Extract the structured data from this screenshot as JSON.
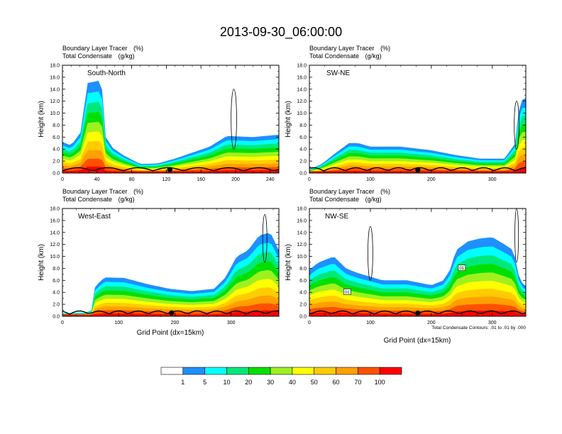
{
  "title": "2013-09-30_06:00:00",
  "panel_common": {
    "tracer_label": "Boundary Layer Tracer",
    "tracer_unit": "(%)",
    "condensate_label": "Total Condensate",
    "condensate_unit": "(g/kg)",
    "ylabel": "Height (km)",
    "xlabel": "Grid Point (dx=15km)"
  },
  "contour_note": "Total Condensate Contours: .01 to .01 by .000",
  "colorbar": {
    "levels": [
      "1",
      "5",
      "10",
      "20",
      "30",
      "40",
      "50",
      "60",
      "70",
      "100"
    ],
    "colors": [
      "#ffffff",
      "#1e90ff",
      "#00ffff",
      "#00e87a",
      "#00e000",
      "#a0f020",
      "#ffff00",
      "#ffcc00",
      "#ffa000",
      "#ff5000",
      "#ff0000"
    ]
  },
  "chart_data": [
    {
      "type": "contour",
      "panel": "South-North",
      "x_ticks": [
        "0",
        "40",
        "80",
        "120",
        "160",
        "200",
        "240"
      ],
      "xlim": [
        0,
        250
      ],
      "y_ticks": [
        "0.0",
        "2.0",
        "4.0",
        "6.0",
        "8.0",
        "10.0",
        "12.0",
        "14.0",
        "16.0",
        "18.0"
      ],
      "ylim": [
        0,
        18
      ],
      "marker_x": 124,
      "profile": [
        [
          0,
          5.2
        ],
        [
          10,
          4.6
        ],
        [
          22,
          7
        ],
        [
          28,
          15
        ],
        [
          45,
          15.5
        ],
        [
          50,
          6
        ],
        [
          58,
          4.2
        ],
        [
          70,
          3
        ],
        [
          90,
          1.5
        ],
        [
          110,
          1.6
        ],
        [
          130,
          2.4
        ],
        [
          150,
          3.4
        ],
        [
          170,
          4.4
        ],
        [
          190,
          6.2
        ],
        [
          220,
          6
        ],
        [
          250,
          6.4
        ]
      ],
      "boxes": [],
      "condensate_cells": [
        [
          198,
          4,
          3.2,
          10
        ]
      ]
    },
    {
      "type": "contour",
      "panel": "SW-NE",
      "x_ticks": [
        "0",
        "100",
        "200",
        "300"
      ],
      "xlim": [
        0,
        355
      ],
      "y_ticks": [
        "0.0",
        "2.0",
        "4.0",
        "6.0",
        "8.0",
        "10.0",
        "12.0",
        "14.0",
        "16.0",
        "18.0"
      ],
      "ylim": [
        0,
        18
      ],
      "marker_x": 178,
      "profile": [
        [
          0,
          0.6
        ],
        [
          20,
          1.5
        ],
        [
          45,
          3.5
        ],
        [
          65,
          5
        ],
        [
          80,
          5
        ],
        [
          100,
          4.4
        ],
        [
          150,
          4.4
        ],
        [
          200,
          3.8
        ],
        [
          240,
          3
        ],
        [
          280,
          2.4
        ],
        [
          320,
          2.4
        ],
        [
          338,
          5
        ],
        [
          345,
          12
        ],
        [
          355,
          12.5
        ]
      ],
      "boxes": [],
      "condensate_cells": [
        [
          340,
          4,
          4,
          8
        ]
      ]
    },
    {
      "type": "contour",
      "panel": "West-East",
      "x_ticks": [
        "0",
        "100",
        "200",
        "300"
      ],
      "xlim": [
        0,
        385
      ],
      "y_ticks": [
        "0.0",
        "2.0",
        "4.0",
        "6.0",
        "8.0",
        "10.0",
        "12.0",
        "14.0",
        "16.0",
        "18.0"
      ],
      "ylim": [
        0,
        18
      ],
      "marker_x": 194,
      "profile": [
        [
          0,
          0.5
        ],
        [
          40,
          0.6
        ],
        [
          52,
          1
        ],
        [
          58,
          5
        ],
        [
          75,
          6.5
        ],
        [
          110,
          6.4
        ],
        [
          150,
          5.4
        ],
        [
          190,
          4.6
        ],
        [
          230,
          4.2
        ],
        [
          270,
          4.6
        ],
        [
          290,
          6.5
        ],
        [
          310,
          10
        ],
        [
          330,
          11
        ],
        [
          350,
          13.5
        ],
        [
          370,
          14
        ],
        [
          385,
          11
        ]
      ],
      "boxes": [],
      "condensate_cells": [
        [
          360,
          9,
          3.8,
          8
        ]
      ]
    },
    {
      "type": "contour",
      "panel": "NW-SE",
      "x_ticks": [
        "0",
        "100",
        "200",
        "300"
      ],
      "xlim": [
        0,
        355
      ],
      "y_ticks": [
        "0.0",
        "2.0",
        "4.0",
        "6.0",
        "8.0",
        "10.0",
        "12.0",
        "14.0",
        "16.0",
        "18.0"
      ],
      "ylim": [
        0,
        18
      ],
      "marker_x": 178,
      "profile": [
        [
          0,
          7.8
        ],
        [
          15,
          9
        ],
        [
          40,
          10
        ],
        [
          60,
          8
        ],
        [
          80,
          7.2
        ],
        [
          120,
          6
        ],
        [
          160,
          6
        ],
        [
          200,
          5.2
        ],
        [
          220,
          6
        ],
        [
          232,
          8
        ],
        [
          240,
          11
        ],
        [
          260,
          12.5
        ],
        [
          280,
          13
        ],
        [
          300,
          13.2
        ],
        [
          320,
          12
        ],
        [
          335,
          11
        ],
        [
          345,
          6
        ],
        [
          355,
          5
        ]
      ],
      "boxes": [
        {
          "x": 62,
          "y": 4.1,
          "label": "01"
        },
        {
          "x": 250,
          "y": 8.1,
          "label": "01"
        }
      ],
      "condensate_cells": [
        [
          100,
          6,
          4,
          9
        ],
        [
          340,
          9,
          3,
          9
        ]
      ]
    }
  ]
}
